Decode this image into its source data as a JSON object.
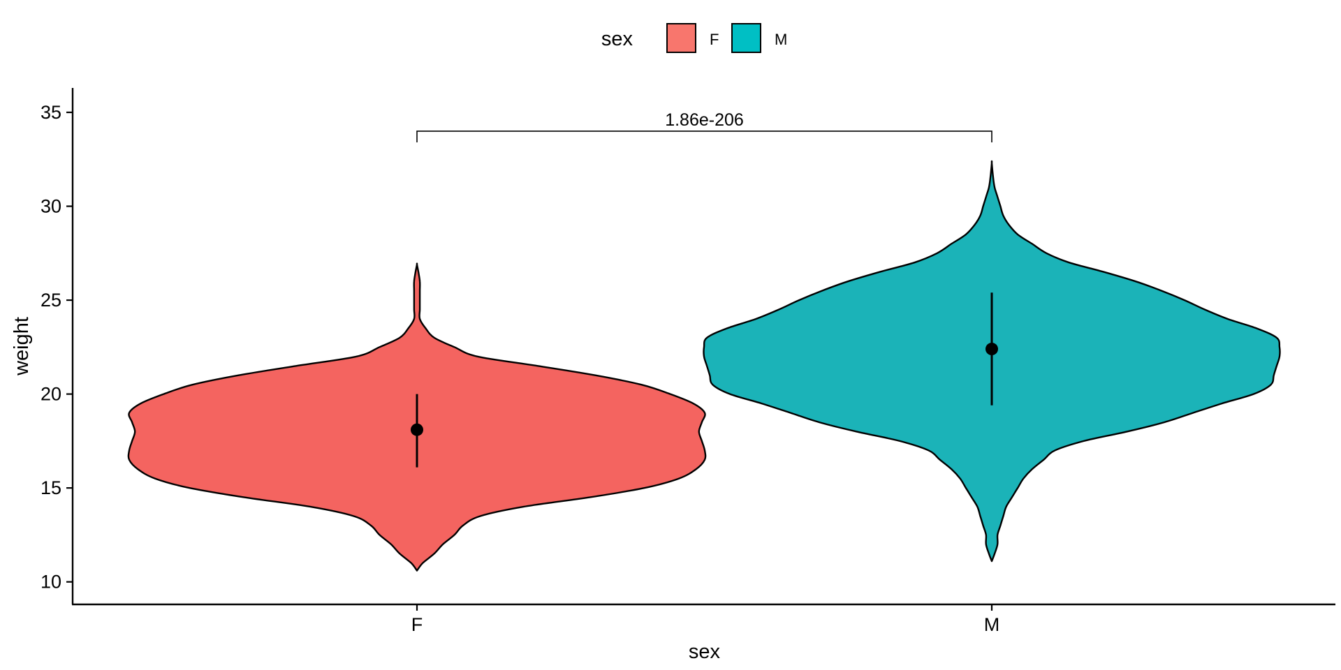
{
  "chart_data": {
    "type": "violin",
    "xlabel": "sex",
    "ylabel": "weight",
    "categories": [
      "F",
      "M"
    ],
    "ylim": [
      8.8,
      36.3
    ],
    "yticks": [
      10,
      15,
      20,
      25,
      30,
      35
    ],
    "grid": false,
    "legend": {
      "title": "sex",
      "position": "top",
      "items": [
        {
          "label": "F",
          "color": "#F8766D"
        },
        {
          "label": "M",
          "color": "#00BFC4"
        }
      ]
    },
    "series": [
      {
        "label": "F",
        "color": "#F46460",
        "mean": 18.1,
        "sd_low": 16.1,
        "sd_high": 20.0,
        "min": 10.6,
        "max": 26.9,
        "density_profile": [
          [
            10.6,
            0.0
          ],
          [
            11.0,
            0.02
          ],
          [
            11.5,
            0.06
          ],
          [
            12.0,
            0.09
          ],
          [
            12.5,
            0.13
          ],
          [
            13.0,
            0.16
          ],
          [
            13.5,
            0.22
          ],
          [
            14.0,
            0.37
          ],
          [
            14.5,
            0.6
          ],
          [
            15.0,
            0.79
          ],
          [
            15.5,
            0.91
          ],
          [
            16.0,
            0.97
          ],
          [
            16.5,
            1.0
          ],
          [
            17.0,
            1.0
          ],
          [
            17.5,
            0.99
          ],
          [
            18.0,
            0.98
          ],
          [
            18.5,
            0.99
          ],
          [
            19.0,
            1.0
          ],
          [
            19.5,
            0.96
          ],
          [
            20.0,
            0.88
          ],
          [
            20.5,
            0.78
          ],
          [
            21.0,
            0.62
          ],
          [
            21.5,
            0.42
          ],
          [
            22.0,
            0.21
          ],
          [
            22.5,
            0.13
          ],
          [
            23.0,
            0.06
          ],
          [
            23.5,
            0.03
          ],
          [
            24.0,
            0.01
          ],
          [
            24.5,
            0.01
          ],
          [
            25.0,
            0.01
          ],
          [
            25.5,
            0.01
          ],
          [
            26.0,
            0.01
          ],
          [
            26.5,
            0.005
          ],
          [
            26.9,
            0.0
          ]
        ]
      },
      {
        "label": "M",
        "color": "#1BB3B8",
        "mean": 22.4,
        "sd_low": 19.4,
        "sd_high": 25.4,
        "min": 11.1,
        "max": 32.3,
        "density_profile": [
          [
            11.1,
            0.0
          ],
          [
            11.5,
            0.01
          ],
          [
            12.0,
            0.02
          ],
          [
            12.5,
            0.02
          ],
          [
            13.0,
            0.03
          ],
          [
            13.5,
            0.04
          ],
          [
            14.0,
            0.05
          ],
          [
            14.5,
            0.07
          ],
          [
            15.0,
            0.09
          ],
          [
            15.5,
            0.11
          ],
          [
            16.0,
            0.14
          ],
          [
            16.5,
            0.18
          ],
          [
            17.0,
            0.22
          ],
          [
            17.5,
            0.32
          ],
          [
            18.0,
            0.47
          ],
          [
            18.5,
            0.6
          ],
          [
            19.0,
            0.7
          ],
          [
            19.5,
            0.8
          ],
          [
            20.0,
            0.91
          ],
          [
            20.5,
            0.97
          ],
          [
            21.0,
            0.98
          ],
          [
            21.5,
            0.99
          ],
          [
            22.0,
            1.0
          ],
          [
            22.5,
            1.0
          ],
          [
            23.0,
            0.99
          ],
          [
            23.5,
            0.92
          ],
          [
            24.0,
            0.82
          ],
          [
            24.5,
            0.74
          ],
          [
            25.0,
            0.67
          ],
          [
            25.5,
            0.59
          ],
          [
            26.0,
            0.5
          ],
          [
            26.5,
            0.39
          ],
          [
            27.0,
            0.27
          ],
          [
            27.5,
            0.19
          ],
          [
            28.0,
            0.14
          ],
          [
            28.5,
            0.09
          ],
          [
            29.0,
            0.06
          ],
          [
            29.5,
            0.04
          ],
          [
            30.0,
            0.03
          ],
          [
            30.5,
            0.02
          ],
          [
            31.0,
            0.01
          ],
          [
            31.5,
            0.005
          ],
          [
            32.3,
            0.0
          ]
        ]
      }
    ],
    "annotation": {
      "text": "1.86e-206",
      "from": "F",
      "to": "M",
      "y": 34.0,
      "tip_bottom": 33.4
    }
  }
}
